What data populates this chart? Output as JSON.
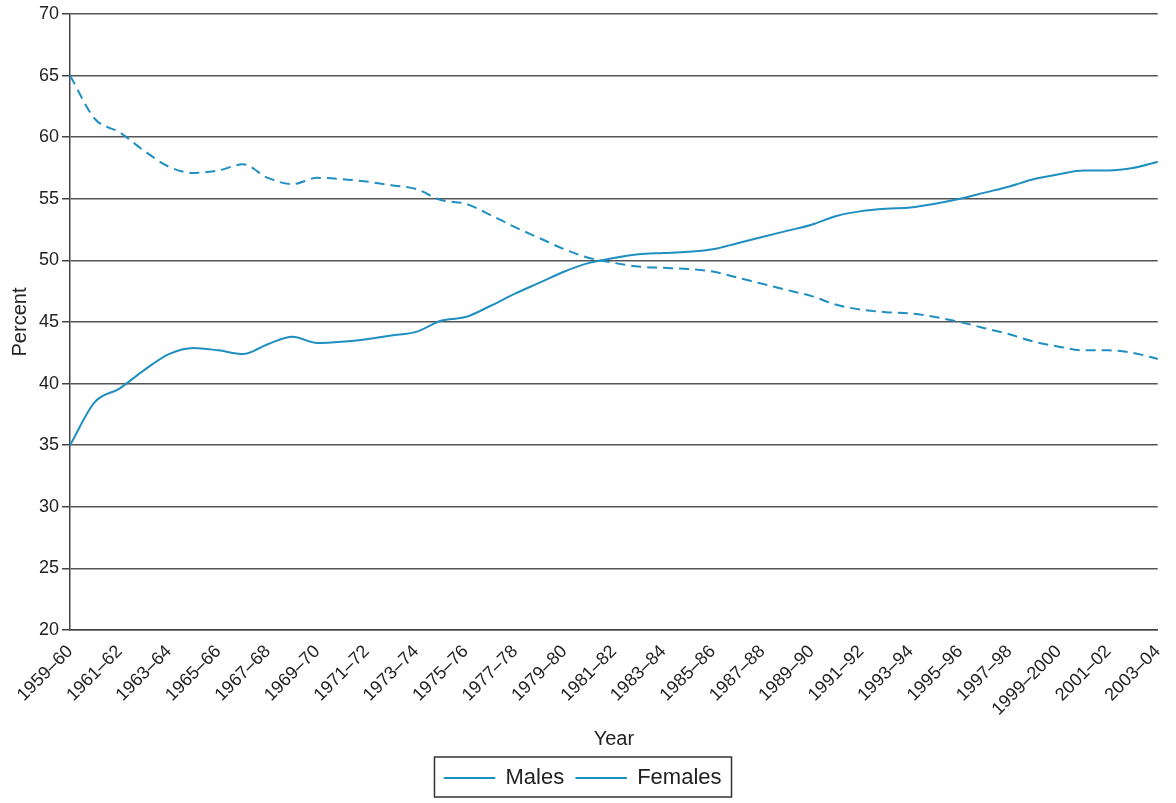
{
  "chart_data": {
    "type": "line",
    "xlabel": "Year",
    "ylabel": "Percent",
    "categories": [
      "1959–60",
      null,
      "1961–62",
      null,
      "1963–64",
      null,
      "1965–66",
      null,
      "1967–68",
      null,
      "1969–70",
      null,
      "1971–72",
      null,
      "1973–74",
      null,
      "1975–76",
      null,
      "1977–78",
      null,
      "1979–80",
      null,
      "1981–82",
      null,
      "1983–84",
      null,
      "1985–86",
      null,
      "1987–88",
      null,
      "1989–90",
      null,
      "1991–92",
      null,
      "1993–94",
      null,
      "1995–96",
      null,
      "1997–98",
      null,
      "1999–2000",
      null,
      "2001–02",
      null,
      "2003–04"
    ],
    "series": [
      {
        "name": "Males",
        "color": "#1e8fc0",
        "line_style": "dashed",
        "values": [
          65,
          61.5,
          60.4,
          58.9,
          57.6,
          57.1,
          57.3,
          57.8,
          56.7,
          56.2,
          56.7,
          56.6,
          56.4,
          56.1,
          55.8,
          54.9,
          54.6,
          53.7,
          52.7,
          51.8,
          50.9,
          50.2,
          49.8,
          49.5,
          49.4,
          49.3,
          49.1,
          48.6,
          48.1,
          47.6,
          47.1,
          46.4,
          46.0,
          45.8,
          45.7,
          45.4,
          45.0,
          44.5,
          44.0,
          43.4,
          43.0,
          42.7,
          42.7,
          42.5,
          42.0
        ]
      },
      {
        "name": "Females",
        "color": "#1e8fc0",
        "line_style": "solid",
        "values": [
          35,
          38.5,
          39.6,
          41.1,
          42.4,
          42.9,
          42.7,
          42.4,
          43.2,
          43.8,
          43.3,
          43.4,
          43.6,
          43.9,
          44.2,
          45.1,
          45.4,
          46.3,
          47.3,
          48.2,
          49.1,
          49.8,
          50.2,
          50.5,
          50.6,
          50.7,
          50.9,
          51.4,
          51.9,
          52.4,
          52.9,
          53.6,
          54.0,
          54.2,
          54.3,
          54.6,
          55.0,
          55.5,
          56.0,
          56.6,
          57.0,
          57.3,
          57.3,
          57.5,
          58.0
        ]
      }
    ],
    "ylim": [
      20,
      70
    ],
    "yticks": [
      20,
      25,
      30,
      35,
      40,
      45,
      50,
      55,
      60,
      65,
      70
    ],
    "grid": "y",
    "legend": "bottom",
    "marker": "none"
  }
}
